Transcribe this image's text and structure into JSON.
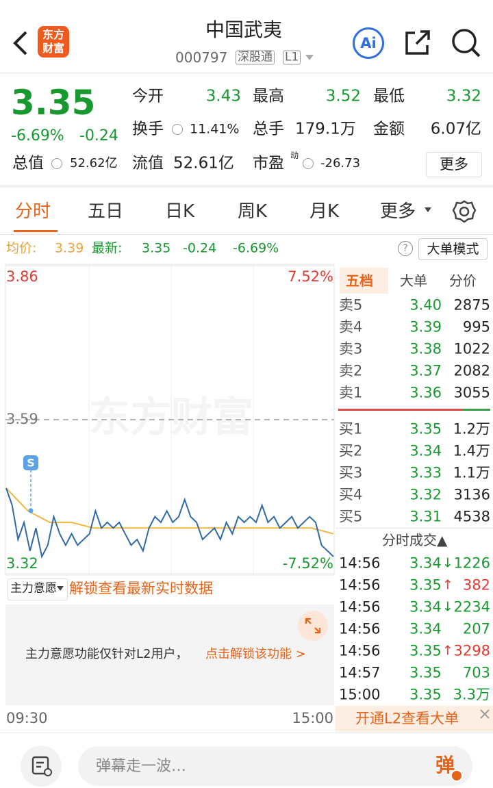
{
  "header": {
    "logo": "东方财富",
    "title": "中国武夷",
    "code": "000797",
    "tags": [
      "深股通",
      "L1"
    ],
    "ai": "Ai"
  },
  "quote": {
    "price": "3.35",
    "change_pct": "-6.69%",
    "change": "-0.24",
    "stats": [
      {
        "label": "今开",
        "value": "3.43"
      },
      {
        "label": "最高",
        "value": "3.52"
      },
      {
        "label": "最低",
        "value": "3.32"
      },
      {
        "label": "换手",
        "value": "11.41%"
      },
      {
        "label": "总手",
        "value": "179.1万"
      },
      {
        "label": "金额",
        "value": "6.07亿"
      },
      {
        "label": "总值",
        "value": "52.62亿"
      },
      {
        "label": "流值",
        "value": "52.61亿"
      },
      {
        "label": "市盈",
        "value": "-26.73"
      }
    ],
    "pe_tag": "动",
    "more": "更多"
  },
  "tabs": [
    "分时",
    "五日",
    "日K",
    "周K",
    "月K",
    "更多"
  ],
  "info_bar": {
    "avg_label": "均价:",
    "avg": "3.39",
    "latest_label": "最新:",
    "latest": "3.35",
    "change": "-0.24",
    "change_pct": "-6.69%",
    "help": "?",
    "mode_button": "大单模式"
  },
  "chart": {
    "type": "line",
    "ylim": [
      3.32,
      3.86
    ],
    "yticks": [
      3.32,
      3.59,
      3.86
    ],
    "pct_lim": [
      -7.52,
      7.52
    ],
    "pct_ticks": [
      {
        "value": -7.52,
        "label": "-7.52%"
      },
      {
        "value": 7.52,
        "label": "7.52%"
      }
    ],
    "x_labels": [
      "09:30",
      "15:00"
    ],
    "watermark": "东方财富",
    "marker": "S",
    "price_color": "#2f6aa8",
    "avg_color": "#f0b840",
    "price": [
      3.47,
      3.44,
      3.38,
      3.41,
      3.36,
      3.4,
      3.35,
      3.37,
      3.42,
      3.39,
      3.37,
      3.39,
      3.37,
      3.38,
      3.39,
      3.43,
      3.4,
      3.41,
      3.4,
      3.41,
      3.39,
      3.37,
      3.38,
      3.36,
      3.4,
      3.42,
      3.41,
      3.43,
      3.41,
      3.42,
      3.45,
      3.42,
      3.41,
      3.38,
      3.39,
      3.4,
      3.38,
      3.41,
      3.39,
      3.42,
      3.41,
      3.42,
      3.41,
      3.44,
      3.41,
      3.42,
      3.4,
      3.41,
      3.42,
      3.4,
      3.41,
      3.42,
      3.41,
      3.37,
      3.36,
      3.35
    ],
    "avg": [
      3.47,
      3.43,
      3.41,
      3.41,
      3.4,
      3.4,
      3.4,
      3.4,
      3.4,
      3.4,
      3.4,
      3.4,
      3.4,
      3.4,
      3.4,
      3.39
    ]
  },
  "order_book": {
    "tabs": [
      "五档",
      "大单",
      "分价"
    ],
    "asks": [
      {
        "label": "卖5",
        "price": "3.40",
        "volume": "2875"
      },
      {
        "label": "卖4",
        "price": "3.39",
        "volume": "995"
      },
      {
        "label": "卖3",
        "price": "3.38",
        "volume": "1022"
      },
      {
        "label": "卖2",
        "price": "3.37",
        "volume": "2082"
      },
      {
        "label": "卖1",
        "price": "3.36",
        "volume": "3055"
      }
    ],
    "bids": [
      {
        "label": "买1",
        "price": "3.35",
        "volume": "1.2万"
      },
      {
        "label": "买2",
        "price": "3.34",
        "volume": "1.4万"
      },
      {
        "label": "买3",
        "price": "3.33",
        "volume": "1.1万"
      },
      {
        "label": "买4",
        "price": "3.32",
        "volume": "3136"
      },
      {
        "label": "买5",
        "price": "3.31",
        "volume": "4538"
      }
    ]
  },
  "trades": {
    "title": "分时成交▲",
    "rows": [
      {
        "time": "14:56",
        "price": "3.34",
        "arrow": "↓",
        "volume": "1226"
      },
      {
        "time": "14:56",
        "price": "3.35",
        "arrow": "↑",
        "volume": "382"
      },
      {
        "time": "14:56",
        "price": "3.34",
        "arrow": "↓",
        "volume": "2234"
      },
      {
        "time": "14:56",
        "price": "3.34",
        "volume": "207"
      },
      {
        "time": "14:56",
        "price": "3.35",
        "arrow": "↑",
        "volume": "3298"
      },
      {
        "time": "14:57",
        "price": "3.35",
        "volume": "703"
      },
      {
        "time": "15:00",
        "price": "3.35",
        "volume": "3.3万"
      }
    ]
  },
  "l2_banner": "开通L2查看大单",
  "main_force": {
    "selector": "主力意愿",
    "unlock": "解锁查看最新实时数据",
    "notice": "主力意愿功能仅针对L2用户，",
    "notice_link": "点击解锁该功能 >"
  },
  "footer": {
    "placeholder": "弹幕走一波…",
    "danmu": "弹"
  }
}
